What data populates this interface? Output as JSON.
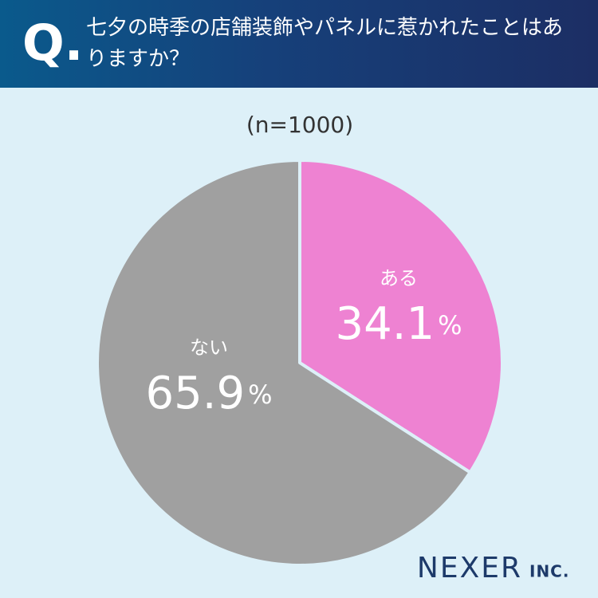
{
  "chart_data": {
    "type": "pie",
    "q_label": "Q.",
    "title": "七夕の時季の店舗装飾やパネルに惹かれたことはありますか？",
    "subtitle": "(n=1000)",
    "categories": [
      "ある",
      "ない"
    ],
    "values": [
      34.1,
      65.9
    ],
    "value_labels": [
      "34.1%",
      "65.9%"
    ],
    "colors": [
      "#ee82d2",
      "#a0a0a0"
    ],
    "brand": {
      "name": "NEXER",
      "suffix": "INC."
    }
  }
}
